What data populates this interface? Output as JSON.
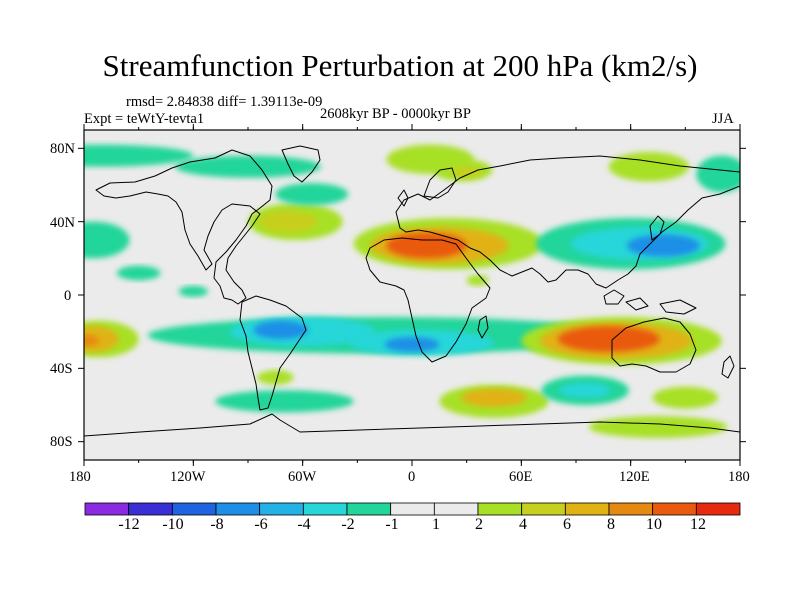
{
  "title": "Streamfunction Perturbation at 200 hPa (km2/s)",
  "stats": "rmsd= 2.84838 diff= 1.39113e-09",
  "experiment": "Expt = teWtY-tevta1",
  "period": "2608kyr BP - 0000kyr BP",
  "season": "JJA",
  "axes": {
    "x_ticks": [
      "180",
      "120W",
      "60W",
      "0",
      "60E",
      "120E",
      "180"
    ],
    "y_ticks": [
      "80N",
      "40N",
      "0",
      "40S",
      "80S"
    ]
  },
  "colorbar": {
    "labels": [
      "-12",
      "-10",
      "-8",
      "-6",
      "-4",
      "-2",
      "-1",
      "1",
      "2",
      "4",
      "6",
      "8",
      "10",
      "12"
    ],
    "colors": [
      "#8a2be2",
      "#3a2fd6",
      "#1f63e0",
      "#1d8fe6",
      "#22b2e6",
      "#27d6d8",
      "#22d59a",
      "#ebebeb",
      "#a8e027",
      "#c7cf1f",
      "#e0b214",
      "#e58a10",
      "#ea5a0e",
      "#e62a10"
    ]
  },
  "map": {
    "background_color": "#ebebeb",
    "regions": [
      {
        "lon": 20,
        "lat": 28,
        "rx": 52,
        "ry": 14,
        "color": "#a8e027"
      },
      {
        "lon": 15,
        "lat": 27,
        "rx": 38,
        "ry": 10,
        "color": "#e0b214"
      },
      {
        "lon": 8,
        "lat": 27,
        "rx": 22,
        "ry": 7,
        "color": "#ea5a0e"
      },
      {
        "lon": 36,
        "lat": 8,
        "rx": 6,
        "ry": 3,
        "color": "#a8e027"
      },
      {
        "lon": -64,
        "lat": 40,
        "rx": 26,
        "ry": 10,
        "color": "#a8e027"
      },
      {
        "lon": -68,
        "lat": 40,
        "rx": 16,
        "ry": 6,
        "color": "#c7cf1f"
      },
      {
        "lon": 10,
        "lat": 74,
        "rx": 24,
        "ry": 8,
        "color": "#a8e027"
      },
      {
        "lon": 28,
        "lat": 68,
        "rx": 16,
        "ry": 6,
        "color": "#a8e027"
      },
      {
        "lon": 30,
        "lat": 67,
        "rx": 8,
        "ry": 3,
        "color": "#c7cf1f"
      },
      {
        "lon": -170,
        "lat": 76,
        "rx": 50,
        "ry": 6,
        "color": "#22d59a"
      },
      {
        "lon": -90,
        "lat": 70,
        "rx": 40,
        "ry": 6,
        "color": "#22d59a"
      },
      {
        "lon": -55,
        "lat": 55,
        "rx": 20,
        "ry": 6,
        "color": "#22d59a"
      },
      {
        "lon": 130,
        "lat": 70,
        "rx": 22,
        "ry": 8,
        "color": "#a8e027"
      },
      {
        "lon": 170,
        "lat": 66,
        "rx": 14,
        "ry": 10,
        "color": "#22d59a"
      },
      {
        "lon": 120,
        "lat": 28,
        "rx": 52,
        "ry": 14,
        "color": "#22d59a"
      },
      {
        "lon": 125,
        "lat": 28,
        "rx": 38,
        "ry": 9,
        "color": "#27d6d8"
      },
      {
        "lon": 138,
        "lat": 27,
        "rx": 20,
        "ry": 6,
        "color": "#1d8fe6"
      },
      {
        "lon": -175,
        "lat": 30,
        "rx": 20,
        "ry": 10,
        "color": "#22d59a"
      },
      {
        "lon": -150,
        "lat": 12,
        "rx": 12,
        "ry": 4,
        "color": "#22d59a"
      },
      {
        "lon": -120,
        "lat": 2,
        "rx": 8,
        "ry": 3,
        "color": "#22d59a"
      },
      {
        "lon": -15,
        "lat": -22,
        "rx": 130,
        "ry": 10,
        "color": "#22d59a"
      },
      {
        "lon": -60,
        "lat": -20,
        "rx": 40,
        "ry": 8,
        "color": "#27d6d8"
      },
      {
        "lon": -72,
        "lat": -19,
        "rx": 15,
        "ry": 5,
        "color": "#1d8fe6"
      },
      {
        "lon": 5,
        "lat": -26,
        "rx": 40,
        "ry": 7,
        "color": "#27d6d8"
      },
      {
        "lon": 0,
        "lat": -27,
        "rx": 15,
        "ry": 4,
        "color": "#1d8fe6"
      },
      {
        "lon": -172,
        "lat": -24,
        "rx": 22,
        "ry": 10,
        "color": "#a8e027"
      },
      {
        "lon": -175,
        "lat": -24,
        "rx": 14,
        "ry": 7,
        "color": "#e0b214"
      },
      {
        "lon": -178,
        "lat": -25,
        "rx": 6,
        "ry": 3,
        "color": "#e58a10"
      },
      {
        "lon": 115,
        "lat": -25,
        "rx": 55,
        "ry": 13,
        "color": "#a8e027"
      },
      {
        "lon": 112,
        "lat": -25,
        "rx": 42,
        "ry": 10,
        "color": "#e0b214"
      },
      {
        "lon": 108,
        "lat": -24,
        "rx": 28,
        "ry": 7,
        "color": "#ea5a0e"
      },
      {
        "lon": -75,
        "lat": -45,
        "rx": 10,
        "ry": 4,
        "color": "#a8e027"
      },
      {
        "lon": -70,
        "lat": -58,
        "rx": 38,
        "ry": 6,
        "color": "#22d59a"
      },
      {
        "lon": 45,
        "lat": -58,
        "rx": 30,
        "ry": 9,
        "color": "#a8e027"
      },
      {
        "lon": 45,
        "lat": -56,
        "rx": 18,
        "ry": 5,
        "color": "#e0b214"
      },
      {
        "lon": 95,
        "lat": -52,
        "rx": 24,
        "ry": 8,
        "color": "#22d59a"
      },
      {
        "lon": 95,
        "lat": -52,
        "rx": 14,
        "ry": 4,
        "color": "#27d6d8"
      },
      {
        "lon": 135,
        "lat": -72,
        "rx": 38,
        "ry": 6,
        "color": "#a8e027"
      },
      {
        "lon": 150,
        "lat": -56,
        "rx": 18,
        "ry": 6,
        "color": "#a8e027"
      }
    ]
  }
}
